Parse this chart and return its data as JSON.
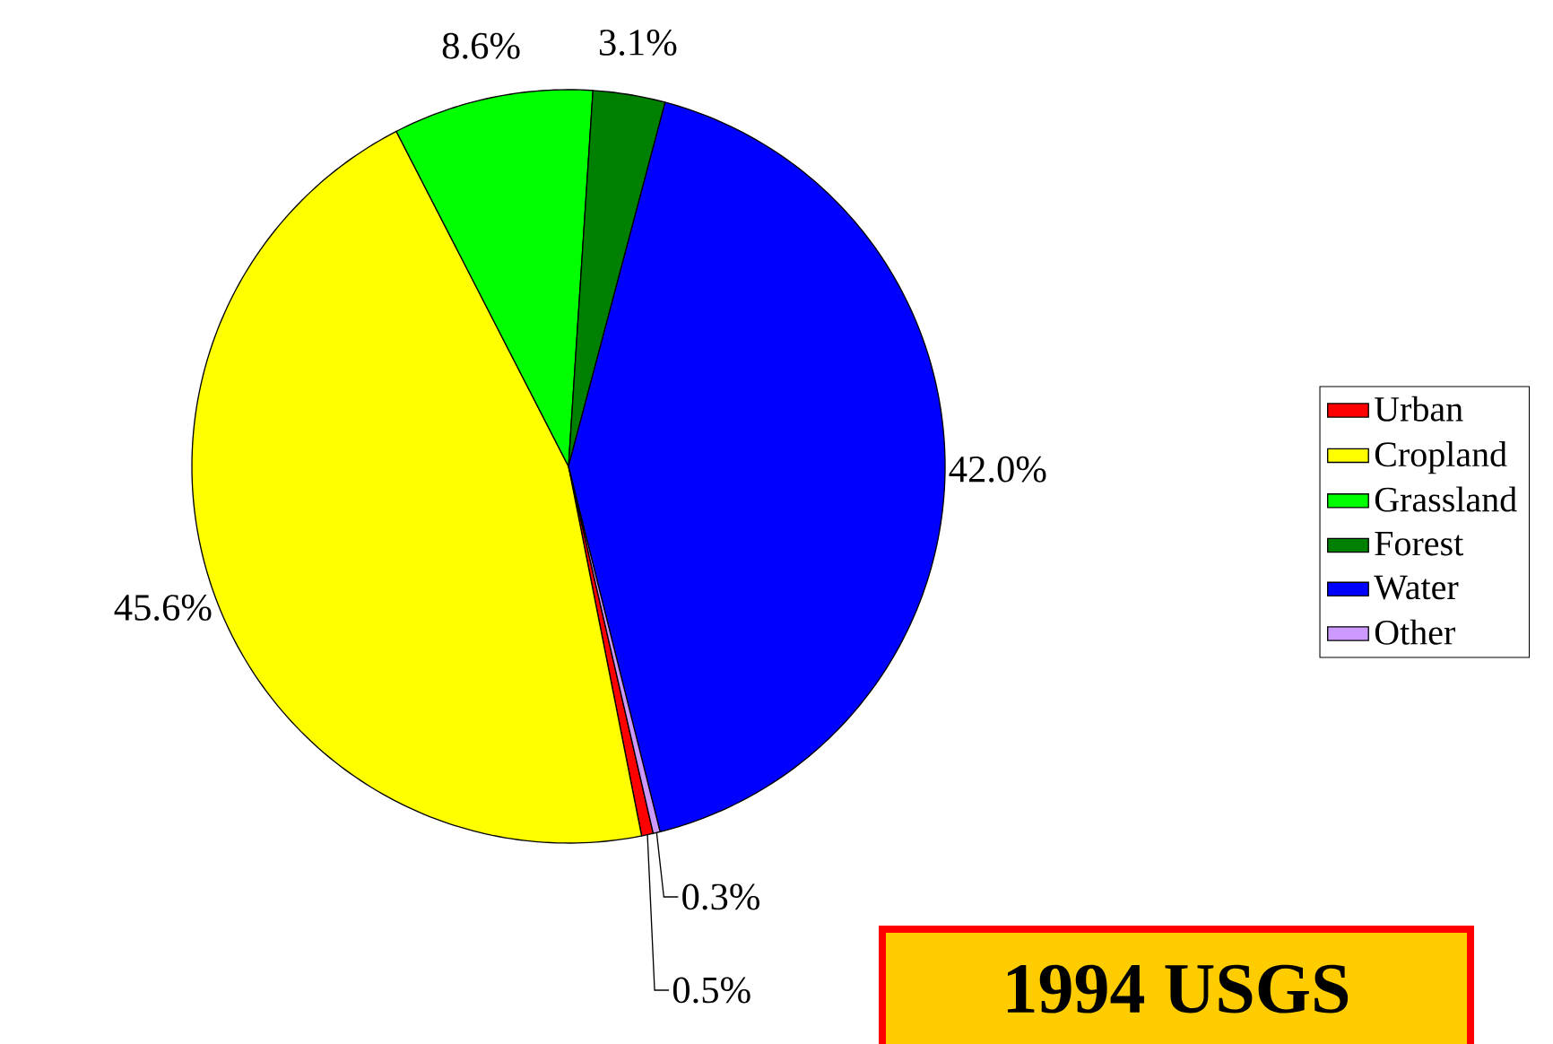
{
  "chart_data": {
    "type": "pie",
    "categories": [
      "Urban",
      "Cropland",
      "Grassland",
      "Forest",
      "Water",
      "Other"
    ],
    "values": [
      0.5,
      45.6,
      8.6,
      3.1,
      42.0,
      0.3
    ],
    "colors": [
      "#ff0000",
      "#ffff00",
      "#00ff00",
      "#008000",
      "#0000ff",
      "#cc99ff"
    ],
    "value_labels": [
      "0.5%",
      "45.6%",
      "8.6%",
      "3.1%",
      "42.0%",
      "0.3%"
    ],
    "legend": "right",
    "annotations": [
      "1994 USGS"
    ]
  }
}
